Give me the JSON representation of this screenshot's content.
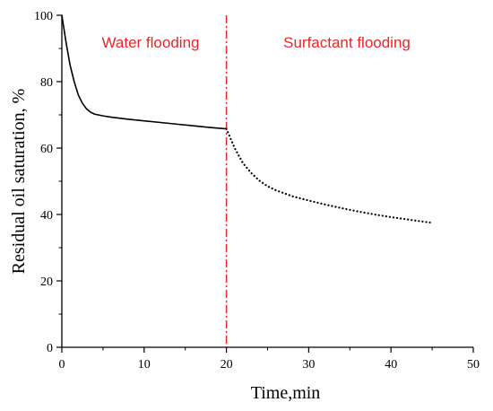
{
  "chart_data": {
    "type": "line",
    "xlabel": "Time,min",
    "ylabel": "Residual oil saturation,  %",
    "xlim": [
      0,
      50
    ],
    "ylim": [
      0,
      100
    ],
    "xticks": [
      "0",
      "10",
      "20",
      "30",
      "40",
      "50"
    ],
    "yticks": [
      "0",
      "20",
      "40",
      "60",
      "80",
      "100"
    ],
    "grid": false,
    "annotations": [
      {
        "text": "Water flooding",
        "color": "#e8262a"
      },
      {
        "text": "Surfactant flooding",
        "color": "#e8262a"
      }
    ],
    "divider": {
      "x": 20,
      "color": "#e8262a",
      "style": "dash-dot"
    },
    "series": [
      {
        "style": "solid",
        "color": "#000000",
        "x": [
          0,
          0.5,
          1,
          1.5,
          2,
          2.5,
          3,
          3.5,
          4,
          5,
          6,
          8,
          10,
          12,
          14,
          16,
          18,
          20
        ],
        "y": [
          100,
          92,
          85,
          80,
          76,
          73.5,
          71.8,
          70.8,
          70.2,
          69.7,
          69.3,
          68.7,
          68.2,
          67.7,
          67.2,
          66.7,
          66.2,
          65.8
        ]
      },
      {
        "style": "dotted",
        "color": "#000000",
        "x": [
          20,
          21,
          22,
          23,
          24,
          25,
          26,
          28,
          30,
          32,
          34,
          36,
          38,
          40,
          42,
          44,
          45
        ],
        "y": [
          65.8,
          60,
          55.5,
          52.5,
          50.2,
          48.5,
          47.3,
          45.5,
          44.2,
          43,
          41.9,
          40.9,
          40,
          39.2,
          38.5,
          37.8,
          37.5
        ]
      }
    ]
  }
}
